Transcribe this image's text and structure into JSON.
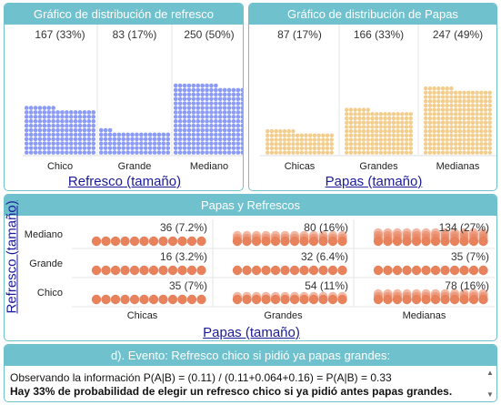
{
  "panel_refresco": {
    "header": "Gráfico de distribución de refresco",
    "axis_title": "Refresco (tamaño)"
  },
  "panel_papas": {
    "header": "Gráfico de distribución de Papas",
    "axis_title": "Papas (tamaño)"
  },
  "panel_cross": {
    "header": "Papas y Refrescos",
    "x_axis_title": "Papas (tamaño)",
    "y_axis_title": "Refresco (tamaño)"
  },
  "footer": {
    "header": "d). Evento: Refresco chico si pidió ya papas grandes:",
    "line1": "Observando la información P(A|B) = (0.11) / (0.11+0.064+0.16) = P(A|B) = 0.33",
    "line2": "Hay 33% de probabilidad de elegir un refresco chico si ya pidió antes papas grandes."
  },
  "colors": {
    "accent": "#6fc1cd",
    "refresco_dot": "#8c9cf6",
    "papas_dot": "#f2cd8c",
    "cross_dot": "#e8825c",
    "axis_title": "#1a1a9a"
  },
  "chart_data": [
    {
      "type": "bar",
      "categories": [
        "Chico",
        "Grande",
        "Mediano"
      ],
      "values": [
        167,
        83,
        250
      ],
      "labels": [
        "167 (33%)",
        "83 (17%)",
        "250 (50%)"
      ],
      "xlabel": "Refresco (tamaño)"
    },
    {
      "type": "bar",
      "categories": [
        "Chicas",
        "Grandes",
        "Medianas"
      ],
      "values": [
        87,
        166,
        247
      ],
      "labels": [
        "87 (17%)",
        "166 (33%)",
        "247 (49%)"
      ],
      "xlabel": "Papas (tamaño)"
    },
    {
      "type": "table",
      "rows": [
        "Mediano",
        "Grande",
        "Chico"
      ],
      "columns": [
        "Chicas",
        "Grandes",
        "Medianas"
      ],
      "values": [
        [
          36,
          80,
          134
        ],
        [
          16,
          32,
          35
        ],
        [
          35,
          54,
          78
        ]
      ],
      "labels": [
        [
          "36 (7.2%)",
          "80 (16%)",
          "134 (27%)"
        ],
        [
          "16 (3.2%)",
          "32 (6.4%)",
          "35 (7%)"
        ],
        [
          "35 (7%)",
          "54 (11%)",
          "78 (16%)"
        ]
      ],
      "xlabel": "Papas (tamaño)",
      "ylabel": "Refresco (tamaño)"
    }
  ]
}
